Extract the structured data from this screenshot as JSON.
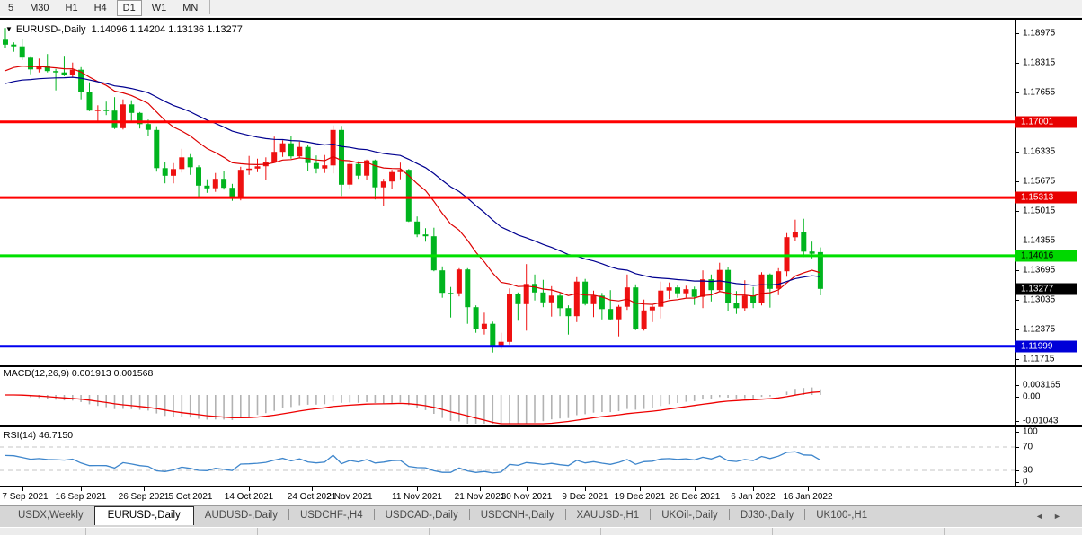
{
  "toolbar": {
    "timeframe_buttons": [
      "5",
      "M30",
      "H1",
      "H4",
      "D1",
      "W1",
      "MN"
    ],
    "active_timeframe": "D1"
  },
  "chart_header": {
    "dropdown_glyph": "▼",
    "title_text": "EURUSD-,Daily",
    "title_ohlc": "1.14096 1.14204 1.13136 1.13277"
  },
  "chart_data": {
    "type": "candlestick",
    "symbol": "EURUSD-",
    "timeframe": "Daily",
    "last_bar": {
      "open": 1.14096,
      "high": 1.14204,
      "low": 1.13136,
      "close": 1.13277
    },
    "price_axis_ticks": [
      1.18975,
      1.18315,
      1.17655,
      1.16335,
      1.15675,
      1.15015,
      1.14355,
      1.13695,
      1.13035,
      1.12375,
      1.11715
    ],
    "price_range": [
      1.1155,
      1.19255
    ],
    "horizontal_lines": [
      {
        "price": 1.17001,
        "color": "#ff0000"
      },
      {
        "price": 1.15313,
        "color": "#ff0000"
      },
      {
        "price": 1.14016,
        "color": "#00e000"
      },
      {
        "price": 1.11999,
        "color": "#0000f0"
      }
    ],
    "price_tags": [
      {
        "text": "1.17001",
        "price": 1.17001,
        "bg": "#e80000",
        "fg": "#ffffff"
      },
      {
        "text": "1.15313",
        "price": 1.15313,
        "bg": "#e80000",
        "fg": "#ffffff"
      },
      {
        "text": "1.14016",
        "price": 1.14016,
        "bg": "#00d800",
        "fg": "#000000"
      },
      {
        "text": "1.13277",
        "price": 1.13277,
        "bg": "#000000",
        "fg": "#ffffff"
      },
      {
        "text": "1.11999",
        "price": 1.11999,
        "bg": "#0000d8",
        "fg": "#ffffff"
      }
    ],
    "candle_colors": {
      "up": "#ee1111",
      "down": "#00b41e"
    },
    "moving_averages": [
      {
        "name": "fast-ma",
        "period": 14,
        "seed": 1.1805,
        "color": "#dd0000"
      },
      {
        "name": "slow-ma",
        "period": 34,
        "seed": 1.178,
        "color": "#000090"
      }
    ],
    "candles_ohlc": [
      [
        1.1883,
        1.1909,
        1.1865,
        1.1872
      ],
      [
        1.1872,
        1.1877,
        1.1856,
        1.1868
      ],
      [
        1.1868,
        1.1885,
        1.1838,
        1.1843
      ],
      [
        1.1843,
        1.1846,
        1.1806,
        1.1817
      ],
      [
        1.1817,
        1.1841,
        1.181,
        1.1825
      ],
      [
        1.1825,
        1.1851,
        1.181,
        1.1813
      ],
      [
        1.1813,
        1.1818,
        1.177,
        1.181
      ],
      [
        1.181,
        1.1847,
        1.1802,
        1.1805
      ],
      [
        1.1805,
        1.1832,
        1.1799,
        1.1816
      ],
      [
        1.1816,
        1.1822,
        1.175,
        1.1766
      ],
      [
        1.1766,
        1.1788,
        1.1724,
        1.1725
      ],
      [
        1.1725,
        1.1737,
        1.17,
        1.1726
      ],
      [
        1.1726,
        1.1745,
        1.1715,
        1.1725
      ],
      [
        1.1725,
        1.1755,
        1.1684,
        1.1686
      ],
      [
        1.1686,
        1.175,
        1.1683,
        1.1739
      ],
      [
        1.1739,
        1.1748,
        1.1701,
        1.172
      ],
      [
        1.172,
        1.1722,
        1.1685,
        1.1695
      ],
      [
        1.1695,
        1.1705,
        1.1668,
        1.1682
      ],
      [
        1.1682,
        1.169,
        1.1589,
        1.1597
      ],
      [
        1.1597,
        1.161,
        1.1563,
        1.158
      ],
      [
        1.158,
        1.1608,
        1.1563,
        1.1595
      ],
      [
        1.1595,
        1.164,
        1.1587,
        1.1621
      ],
      [
        1.1621,
        1.1628,
        1.1582,
        1.1599
      ],
      [
        1.1599,
        1.1603,
        1.1529,
        1.1558
      ],
      [
        1.1558,
        1.1572,
        1.1542,
        1.1552
      ],
      [
        1.1552,
        1.1586,
        1.1544,
        1.1573
      ],
      [
        1.1573,
        1.159,
        1.1549,
        1.1553
      ],
      [
        1.1553,
        1.1562,
        1.1524,
        1.153
      ],
      [
        1.153,
        1.16,
        1.1525,
        1.1593
      ],
      [
        1.1593,
        1.1624,
        1.1582,
        1.1596
      ],
      [
        1.1596,
        1.1618,
        1.1588,
        1.1601
      ],
      [
        1.1601,
        1.1621,
        1.1571,
        1.161
      ],
      [
        1.161,
        1.1667,
        1.1609,
        1.1633
      ],
      [
        1.1633,
        1.1659,
        1.1622,
        1.1652
      ],
      [
        1.1652,
        1.1669,
        1.1618,
        1.1623
      ],
      [
        1.1623,
        1.1656,
        1.162,
        1.1644
      ],
      [
        1.1644,
        1.1648,
        1.159,
        1.1608
      ],
      [
        1.1608,
        1.1625,
        1.1585,
        1.1596
      ],
      [
        1.1596,
        1.1626,
        1.1586,
        1.1603
      ],
      [
        1.1603,
        1.1692,
        1.1585,
        1.1682
      ],
      [
        1.1682,
        1.1691,
        1.1535,
        1.156
      ],
      [
        1.156,
        1.161,
        1.155,
        1.1606
      ],
      [
        1.1606,
        1.1612,
        1.1573,
        1.158
      ],
      [
        1.158,
        1.1616,
        1.157,
        1.1614
      ],
      [
        1.1614,
        1.1616,
        1.1527,
        1.1554
      ],
      [
        1.1554,
        1.1573,
        1.1513,
        1.1567
      ],
      [
        1.1567,
        1.1593,
        1.1551,
        1.1588
      ],
      [
        1.1588,
        1.1609,
        1.1572,
        1.1593
      ],
      [
        1.1593,
        1.1595,
        1.1477,
        1.1478
      ],
      [
        1.1478,
        1.1489,
        1.1443,
        1.1449
      ],
      [
        1.1449,
        1.1463,
        1.1433,
        1.1445
      ],
      [
        1.1445,
        1.1464,
        1.1367,
        1.1369
      ],
      [
        1.1369,
        1.1378,
        1.1308,
        1.1319
      ],
      [
        1.1319,
        1.1332,
        1.1264,
        1.1318
      ],
      [
        1.1318,
        1.1374,
        1.1311,
        1.1371
      ],
      [
        1.1371,
        1.1374,
        1.125,
        1.1287
      ],
      [
        1.1287,
        1.1291,
        1.123,
        1.1238
      ],
      [
        1.1238,
        1.1275,
        1.1226,
        1.125
      ],
      [
        1.125,
        1.1255,
        1.1186,
        1.1199
      ],
      [
        1.1199,
        1.123,
        1.1194,
        1.121
      ],
      [
        1.121,
        1.1329,
        1.1204,
        1.1317
      ],
      [
        1.1317,
        1.132,
        1.1257,
        1.1294
      ],
      [
        1.1294,
        1.1383,
        1.1235,
        1.1339
      ],
      [
        1.1339,
        1.136,
        1.1302,
        1.132
      ],
      [
        1.132,
        1.1348,
        1.1287,
        1.1298
      ],
      [
        1.1298,
        1.1334,
        1.1266,
        1.1313
      ],
      [
        1.1313,
        1.1319,
        1.1267,
        1.1285
      ],
      [
        1.1285,
        1.1291,
        1.1226,
        1.1267
      ],
      [
        1.1267,
        1.1354,
        1.1254,
        1.1344
      ],
      [
        1.1344,
        1.135,
        1.1291,
        1.1294
      ],
      [
        1.1294,
        1.1324,
        1.1265,
        1.1313
      ],
      [
        1.1313,
        1.1319,
        1.126,
        1.1283
      ],
      [
        1.1283,
        1.1325,
        1.1258,
        1.126
      ],
      [
        1.126,
        1.1292,
        1.1222,
        1.1288
      ],
      [
        1.1288,
        1.136,
        1.1281,
        1.1331
      ],
      [
        1.1331,
        1.1338,
        1.1236,
        1.1238
      ],
      [
        1.1238,
        1.1304,
        1.1235,
        1.128
      ],
      [
        1.128,
        1.1292,
        1.1254,
        1.1288
      ],
      [
        1.1288,
        1.1344,
        1.1262,
        1.1324
      ],
      [
        1.1324,
        1.1342,
        1.1305,
        1.1331
      ],
      [
        1.1331,
        1.1337,
        1.1308,
        1.1318
      ],
      [
        1.1318,
        1.1335,
        1.1308,
        1.1327
      ],
      [
        1.1327,
        1.1333,
        1.1292,
        1.131
      ],
      [
        1.131,
        1.1369,
        1.1285,
        1.1349
      ],
      [
        1.1349,
        1.136,
        1.13,
        1.1325
      ],
      [
        1.1325,
        1.1386,
        1.1321,
        1.137
      ],
      [
        1.137,
        1.1376,
        1.1279,
        1.1297
      ],
      [
        1.1297,
        1.1323,
        1.1272,
        1.1285
      ],
      [
        1.1285,
        1.1347,
        1.1279,
        1.1313
      ],
      [
        1.1313,
        1.1332,
        1.1285,
        1.1296
      ],
      [
        1.1296,
        1.1365,
        1.1291,
        1.136
      ],
      [
        1.136,
        1.1362,
        1.1286,
        1.1328
      ],
      [
        1.1328,
        1.1374,
        1.1314,
        1.1367
      ],
      [
        1.1367,
        1.1452,
        1.1355,
        1.1443
      ],
      [
        1.1443,
        1.1482,
        1.1435,
        1.1455
      ],
      [
        1.1455,
        1.1484,
        1.1399,
        1.1411
      ],
      [
        1.1411,
        1.1433,
        1.1396,
        1.1406
      ],
      [
        1.14096,
        1.14204,
        1.13136,
        1.13277
      ]
    ],
    "x_date_labels": [
      {
        "text": "7 Sep 2021",
        "i": 2
      },
      {
        "text": "16 Sep 2021",
        "i": 9
      },
      {
        "text": "26 Sep 2021",
        "i": 16.5
      },
      {
        "text": "5 Oct 2021",
        "i": 22
      },
      {
        "text": "14 Oct 2021",
        "i": 29
      },
      {
        "text": "24 Oct 2021",
        "i": 36.5
      },
      {
        "text": "2 Nov 2021",
        "i": 41
      },
      {
        "text": "11 Nov 2021",
        "i": 49
      },
      {
        "text": "21 Nov 2021",
        "i": 56.5
      },
      {
        "text": "30 Nov 2021",
        "i": 62
      },
      {
        "text": "9 Dec 2021",
        "i": 69
      },
      {
        "text": "19 Dec 2021",
        "i": 75.5
      },
      {
        "text": "28 Dec 2021",
        "i": 82
      },
      {
        "text": "6 Jan 2022",
        "i": 89
      },
      {
        "text": "16 Jan 2022",
        "i": 95.5
      }
    ],
    "macd": {
      "label": "MACD(12,26,9) 0.001913 0.001568",
      "fast": 12,
      "slow": 26,
      "signal_period": 9,
      "current_macd": 0.001913,
      "current_signal": 0.001568,
      "axis_ticks": [
        0.003165,
        0.0,
        -0.01043
      ],
      "hist_color": "#b2b2b2",
      "signal_color": "#ee0000"
    },
    "rsi": {
      "label": "RSI(14) 46.7150",
      "period": 14,
      "current": 46.715,
      "axis_ticks": [
        100,
        70,
        30,
        0
      ],
      "levels": [
        70,
        30
      ],
      "line_color": "#3e86cc",
      "level_color": "#c4c4c4"
    }
  },
  "tabs": {
    "items": [
      {
        "label": "USDX,Weekly",
        "active": false
      },
      {
        "label": "EURUSD-,Daily",
        "active": true
      },
      {
        "label": "AUDUSD-,Daily",
        "active": false
      },
      {
        "label": "USDCHF-,H4",
        "active": false
      },
      {
        "label": "USDCAD-,Daily",
        "active": false
      },
      {
        "label": "USDCNH-,Daily",
        "active": false
      },
      {
        "label": "XAUUSD-,H1",
        "active": false
      },
      {
        "label": "UKOil-,Daily",
        "active": false
      },
      {
        "label": "DJ30-,Daily",
        "active": false
      },
      {
        "label": "UK100-,H1",
        "active": false
      }
    ],
    "scroll_left_glyph": "◄",
    "scroll_right_glyph": "►"
  }
}
